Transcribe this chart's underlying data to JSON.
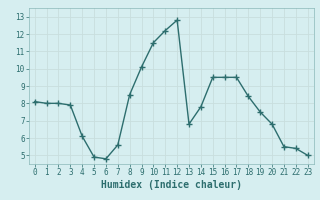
{
  "x": [
    0,
    1,
    2,
    3,
    4,
    5,
    6,
    7,
    8,
    9,
    10,
    11,
    12,
    13,
    14,
    15,
    16,
    17,
    18,
    19,
    20,
    21,
    22,
    23
  ],
  "y": [
    8.1,
    8.0,
    8.0,
    7.9,
    6.1,
    4.9,
    4.8,
    5.6,
    8.5,
    10.1,
    11.5,
    12.2,
    12.8,
    6.8,
    7.8,
    9.5,
    9.5,
    9.5,
    8.4,
    7.5,
    6.8,
    5.5,
    5.4,
    5.0
  ],
  "line_color": "#2d6e6e",
  "marker": "+",
  "marker_size": 4,
  "linewidth": 1.0,
  "xlabel": "Humidex (Indice chaleur)",
  "xlim": [
    -0.5,
    23.5
  ],
  "ylim": [
    4.5,
    13.5
  ],
  "yticks": [
    5,
    6,
    7,
    8,
    9,
    10,
    11,
    12,
    13
  ],
  "xticks": [
    0,
    1,
    2,
    3,
    4,
    5,
    6,
    7,
    8,
    9,
    10,
    11,
    12,
    13,
    14,
    15,
    16,
    17,
    18,
    19,
    20,
    21,
    22,
    23
  ],
  "bg_color": "#d6eef0",
  "grid_color": "#c8dede",
  "tick_fontsize": 5.5,
  "xlabel_fontsize": 7.0
}
